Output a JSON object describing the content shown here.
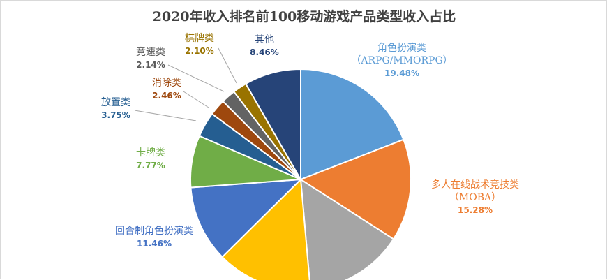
{
  "chart_data": {
    "type": "pie",
    "title": "2020年收入排名前100移动游戏产品类型收入占比",
    "slices": [
      {
        "key": "arpg",
        "label": "角色扮演类",
        "sublabel": "（ARPG/MMORPG）",
        "value": 19.48,
        "value_label": "19.48%",
        "color": "#5b9bd5",
        "label_color": "#5b9bd5"
      },
      {
        "key": "moba",
        "label": "多人在线战术竞技类",
        "sublabel": "（MOBA）",
        "value": 15.28,
        "value_label": "15.28%",
        "color": "#ed7d31",
        "label_color": "#ed7d31"
      },
      {
        "key": "gray",
        "label": "",
        "sublabel": "",
        "value": 14.8,
        "value_label": "",
        "color": "#a5a5a5",
        "label_color": "#7f7f7f"
      },
      {
        "key": "yellow",
        "label": "",
        "sublabel": "",
        "value": 14.27,
        "value_label": "",
        "color": "#ffc000",
        "label_color": "#bf9000"
      },
      {
        "key": "turn_rpg",
        "label": "回合制角色扮演类",
        "sublabel": "",
        "value": 11.46,
        "value_label": "11.46%",
        "color": "#4472c4",
        "label_color": "#4472c4"
      },
      {
        "key": "card",
        "label": "卡牌类",
        "sublabel": "",
        "value": 7.77,
        "value_label": "7.77%",
        "color": "#70ad47",
        "label_color": "#70ad47"
      },
      {
        "key": "idle",
        "label": "放置类",
        "sublabel": "",
        "value": 3.75,
        "value_label": "3.75%",
        "color": "#255e91",
        "label_color": "#255e91"
      },
      {
        "key": "match",
        "label": "消除类",
        "sublabel": "",
        "value": 2.46,
        "value_label": "2.46%",
        "color": "#9e480e",
        "label_color": "#9e480e"
      },
      {
        "key": "racing",
        "label": "竞速类",
        "sublabel": "",
        "value": 2.14,
        "value_label": "2.14%",
        "color": "#636363",
        "label_color": "#595959"
      },
      {
        "key": "chess",
        "label": "棋牌类",
        "sublabel": "",
        "value": 2.1,
        "value_label": "2.10%",
        "color": "#997300",
        "label_color": "#997300"
      },
      {
        "key": "other",
        "label": "其他",
        "sublabel": "",
        "value": 8.46,
        "value_label": "8.46%",
        "color": "#264478",
        "label_color": "#264478"
      }
    ]
  }
}
